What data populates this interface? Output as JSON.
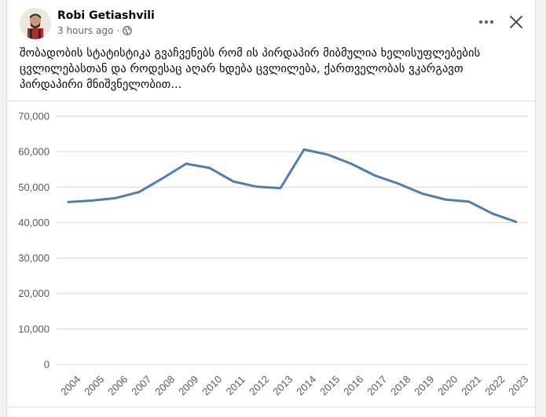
{
  "post": {
    "author": "Robi Getiashvili",
    "time": "3 hours ago",
    "separator": "·",
    "audience_icon": "globe-icon",
    "more_icon": "more-dots-icon",
    "close_icon": "close-icon",
    "text_lines": [
      "შობადობის სტატისტიკა გვაჩვენებს რომ ის პირდაპირ მიბმულია ხელისუფლებების",
      "ცვლილებასთან და როდესაც აღარ ხდება ცვლილება, ქართველობას ვკარგავთ",
      "პირდაპირი მნიშვნელობით..."
    ]
  },
  "colors": {
    "line": "#4e7db0",
    "grid": "#d9d9d9",
    "tick_text": "#595959"
  },
  "chart_data": {
    "type": "line",
    "title": "",
    "xlabel": "",
    "ylabel": "",
    "ylim": [
      0,
      70000
    ],
    "y_ticks": [
      "0",
      "10,000",
      "20,000",
      "30,000",
      "40,000",
      "50,000",
      "60,000",
      "70,000"
    ],
    "y_tick_values": [
      0,
      10000,
      20000,
      30000,
      40000,
      50000,
      60000,
      70000
    ],
    "categories": [
      "2004",
      "2005",
      "2006",
      "2007",
      "2008",
      "2009",
      "2010",
      "2011",
      "2012",
      "2013",
      "2014",
      "2015",
      "2016",
      "2017",
      "2018",
      "2019",
      "2020",
      "2021",
      "2022",
      "2023"
    ],
    "values": [
      45800,
      46200,
      46900,
      48600,
      52500,
      56600,
      55400,
      51600,
      50100,
      49700,
      60600,
      59200,
      56600,
      53300,
      51000,
      48200,
      46500,
      45900,
      42500,
      40200
    ],
    "grid": true,
    "legend": "none"
  }
}
